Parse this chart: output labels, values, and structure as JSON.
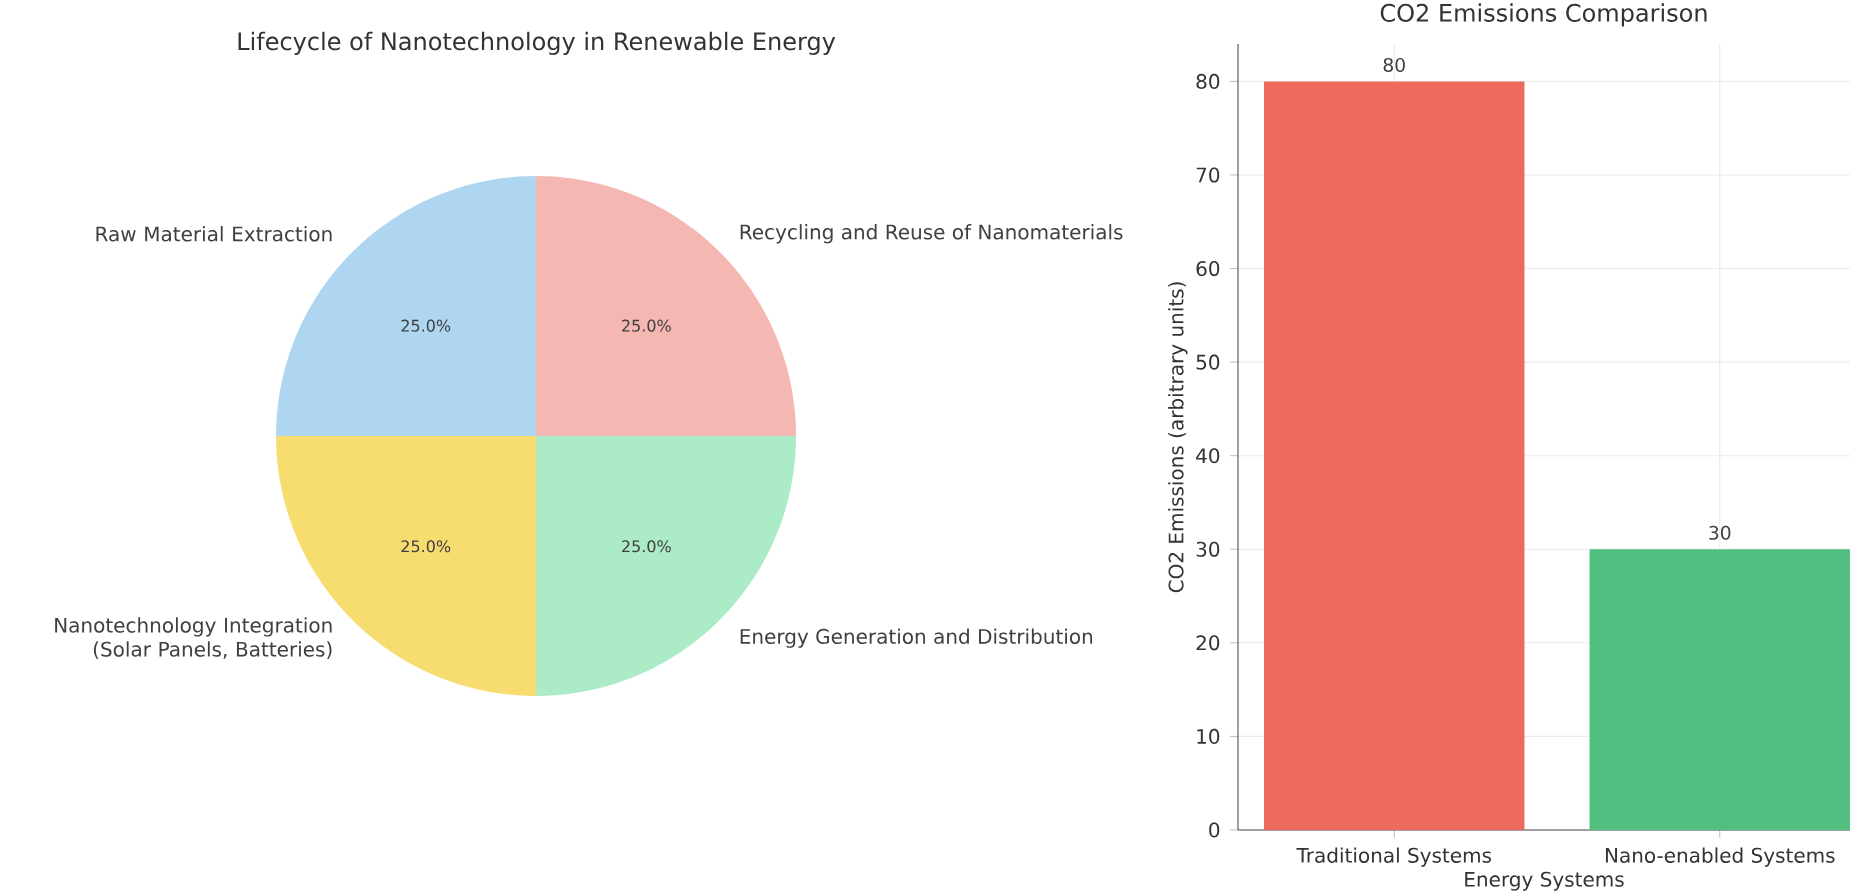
{
  "chart_data": [
    {
      "type": "pie",
      "title": "Lifecycle of Nanotechnology in Renewable Energy",
      "categories": [
        "Raw Material Extraction",
        "Nanotechnology Integration (Solar Panels, Batteries)",
        "Energy Generation and Distribution",
        "Recycling and Reuse of Nanomaterials"
      ],
      "values": [
        25,
        25,
        25,
        25
      ],
      "value_labels": [
        "25.0%",
        "25.0%",
        "25.0%",
        "25.0%"
      ],
      "colors": [
        "#aed6f1",
        "#f7dc6f",
        "#abebc6",
        "#f5b7b1"
      ]
    },
    {
      "type": "bar",
      "title": "CO2 Emissions Comparison",
      "xlabel": "Energy Systems",
      "ylabel": "CO2 Emissions (arbitrary units)",
      "categories": [
        "Traditional Systems",
        "Nano-enabled Systems"
      ],
      "values": [
        80,
        30
      ],
      "colors": [
        "#ec6b5e",
        "#52be80"
      ],
      "ylim": [
        0,
        84
      ],
      "yticks": [
        0,
        10,
        20,
        30,
        40,
        50,
        60,
        70,
        80
      ],
      "grid": true,
      "data_labels": true
    }
  ]
}
